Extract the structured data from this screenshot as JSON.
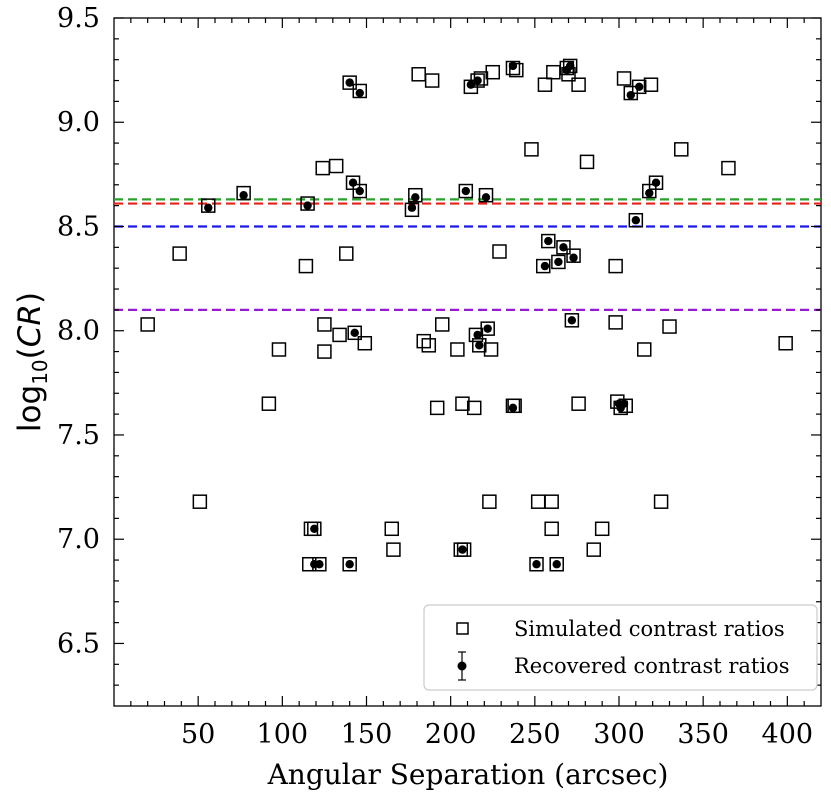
{
  "chart_data": {
    "type": "scatter",
    "xlabel": "Angular Separation (arcsec)",
    "ylabel": "log10(CR)",
    "ylabel_base": "log",
    "ylabel_sub": "10",
    "ylabel_open": "(",
    "ylabel_var": "CR",
    "ylabel_close": ")",
    "xlim": [
      0,
      420
    ],
    "ylim": [
      6.2,
      9.5
    ],
    "xticks": [
      50,
      100,
      150,
      200,
      250,
      300,
      350,
      400
    ],
    "yticks": [
      6.5,
      7.0,
      7.5,
      8.0,
      8.5,
      9.0,
      9.5
    ],
    "xtick_labels": [
      "50",
      "100",
      "150",
      "200",
      "250",
      "300",
      "350",
      "400"
    ],
    "ytick_labels": [
      "6.5",
      "7.0",
      "7.5",
      "8.0",
      "8.5",
      "9.0",
      "9.5"
    ],
    "hlines": [
      {
        "y": 8.63,
        "color": "#2ca02c"
      },
      {
        "y": 8.61,
        "color": "#e8201a"
      },
      {
        "y": 8.5,
        "color": "#1a1ae8"
      },
      {
        "y": 8.1,
        "color": "#9a1ad0"
      }
    ],
    "legend": {
      "location": "lower right",
      "simulated": "Simulated contrast ratios",
      "recovered": "Recovered contrast ratios"
    },
    "simulated": [
      [
        20,
        8.03
      ],
      [
        39,
        8.37
      ],
      [
        51,
        7.18
      ],
      [
        56,
        8.6
      ],
      [
        77,
        8.66
      ],
      [
        92,
        7.65
      ],
      [
        98,
        7.91
      ],
      [
        114,
        8.31
      ],
      [
        115,
        8.61
      ],
      [
        116,
        6.88
      ],
      [
        117,
        7.05
      ],
      [
        119,
        7.05
      ],
      [
        122,
        6.88
      ],
      [
        124,
        8.78
      ],
      [
        125,
        8.03
      ],
      [
        125,
        7.9
      ],
      [
        132,
        8.79
      ],
      [
        134,
        7.98
      ],
      [
        138,
        8.37
      ],
      [
        140,
        6.88
      ],
      [
        140,
        9.19
      ],
      [
        142,
        8.71
      ],
      [
        143,
        7.99
      ],
      [
        146,
        8.67
      ],
      [
        146,
        9.15
      ],
      [
        149,
        7.94
      ],
      [
        165,
        7.05
      ],
      [
        166,
        6.95
      ],
      [
        177,
        8.58
      ],
      [
        179,
        8.65
      ],
      [
        181,
        9.23
      ],
      [
        184,
        7.95
      ],
      [
        187,
        7.93
      ],
      [
        189,
        9.2
      ],
      [
        192,
        7.63
      ],
      [
        195,
        8.03
      ],
      [
        204,
        7.91
      ],
      [
        206,
        6.95
      ],
      [
        207,
        7.65
      ],
      [
        208,
        6.95
      ],
      [
        209,
        8.67
      ],
      [
        212,
        9.17
      ],
      [
        214,
        7.63
      ],
      [
        215,
        7.98
      ],
      [
        216,
        9.2
      ],
      [
        217,
        7.93
      ],
      [
        218,
        9.21
      ],
      [
        221,
        8.65
      ],
      [
        222,
        8.01
      ],
      [
        223,
        7.18
      ],
      [
        224,
        7.91
      ],
      [
        225,
        9.24
      ],
      [
        229,
        8.38
      ],
      [
        237,
        7.64
      ],
      [
        237,
        9.26
      ],
      [
        238,
        7.64
      ],
      [
        239,
        9.25
      ],
      [
        248,
        8.87
      ],
      [
        251,
        6.88
      ],
      [
        252,
        7.18
      ],
      [
        255,
        8.31
      ],
      [
        256,
        9.18
      ],
      [
        258,
        8.43
      ],
      [
        260,
        7.05
      ],
      [
        260,
        7.18
      ],
      [
        261,
        9.24
      ],
      [
        263,
        6.88
      ],
      [
        264,
        8.33
      ],
      [
        267,
        8.4
      ],
      [
        269,
        9.26
      ],
      [
        270,
        9.23
      ],
      [
        271,
        9.27
      ],
      [
        272,
        8.05
      ],
      [
        273,
        8.36
      ],
      [
        276,
        7.65
      ],
      [
        276,
        9.18
      ],
      [
        281,
        8.81
      ],
      [
        285,
        6.95
      ],
      [
        290,
        7.05
      ],
      [
        298,
        8.31
      ],
      [
        298,
        8.04
      ],
      [
        299,
        7.66
      ],
      [
        301,
        7.63
      ],
      [
        303,
        9.21
      ],
      [
        304,
        7.64
      ],
      [
        307,
        9.14
      ],
      [
        310,
        8.53
      ],
      [
        312,
        9.17
      ],
      [
        315,
        7.91
      ],
      [
        318,
        8.67
      ],
      [
        319,
        9.18
      ],
      [
        322,
        8.71
      ],
      [
        325,
        7.18
      ],
      [
        330,
        8.02
      ],
      [
        337,
        8.87
      ],
      [
        365,
        8.78
      ],
      [
        399,
        7.94
      ]
    ],
    "recovered": [
      [
        56,
        8.59
      ],
      [
        77,
        8.65
      ],
      [
        115,
        8.6
      ],
      [
        119,
        6.88
      ],
      [
        119,
        7.05
      ],
      [
        122,
        6.88
      ],
      [
        140,
        6.88
      ],
      [
        140,
        9.19
      ],
      [
        142,
        8.71
      ],
      [
        143,
        7.99
      ],
      [
        146,
        8.67
      ],
      [
        146,
        9.14
      ],
      [
        177,
        8.59
      ],
      [
        179,
        8.64
      ],
      [
        207,
        6.95
      ],
      [
        209,
        8.67
      ],
      [
        212,
        9.18
      ],
      [
        216,
        9.2
      ],
      [
        216,
        7.98
      ],
      [
        217,
        7.93
      ],
      [
        221,
        8.64
      ],
      [
        222,
        8.01
      ],
      [
        237,
        7.63
      ],
      [
        237,
        9.27
      ],
      [
        251,
        6.88
      ],
      [
        256,
        8.31
      ],
      [
        258,
        8.43
      ],
      [
        263,
        6.88
      ],
      [
        264,
        8.33
      ],
      [
        267,
        8.4
      ],
      [
        269,
        9.25
      ],
      [
        271,
        9.27
      ],
      [
        272,
        8.05
      ],
      [
        273,
        8.35
      ],
      [
        300,
        7.65
      ],
      [
        301,
        7.63
      ],
      [
        303,
        7.65
      ],
      [
        307,
        9.13
      ],
      [
        310,
        8.53
      ],
      [
        312,
        9.17
      ],
      [
        318,
        8.66
      ],
      [
        322,
        8.71
      ]
    ]
  }
}
